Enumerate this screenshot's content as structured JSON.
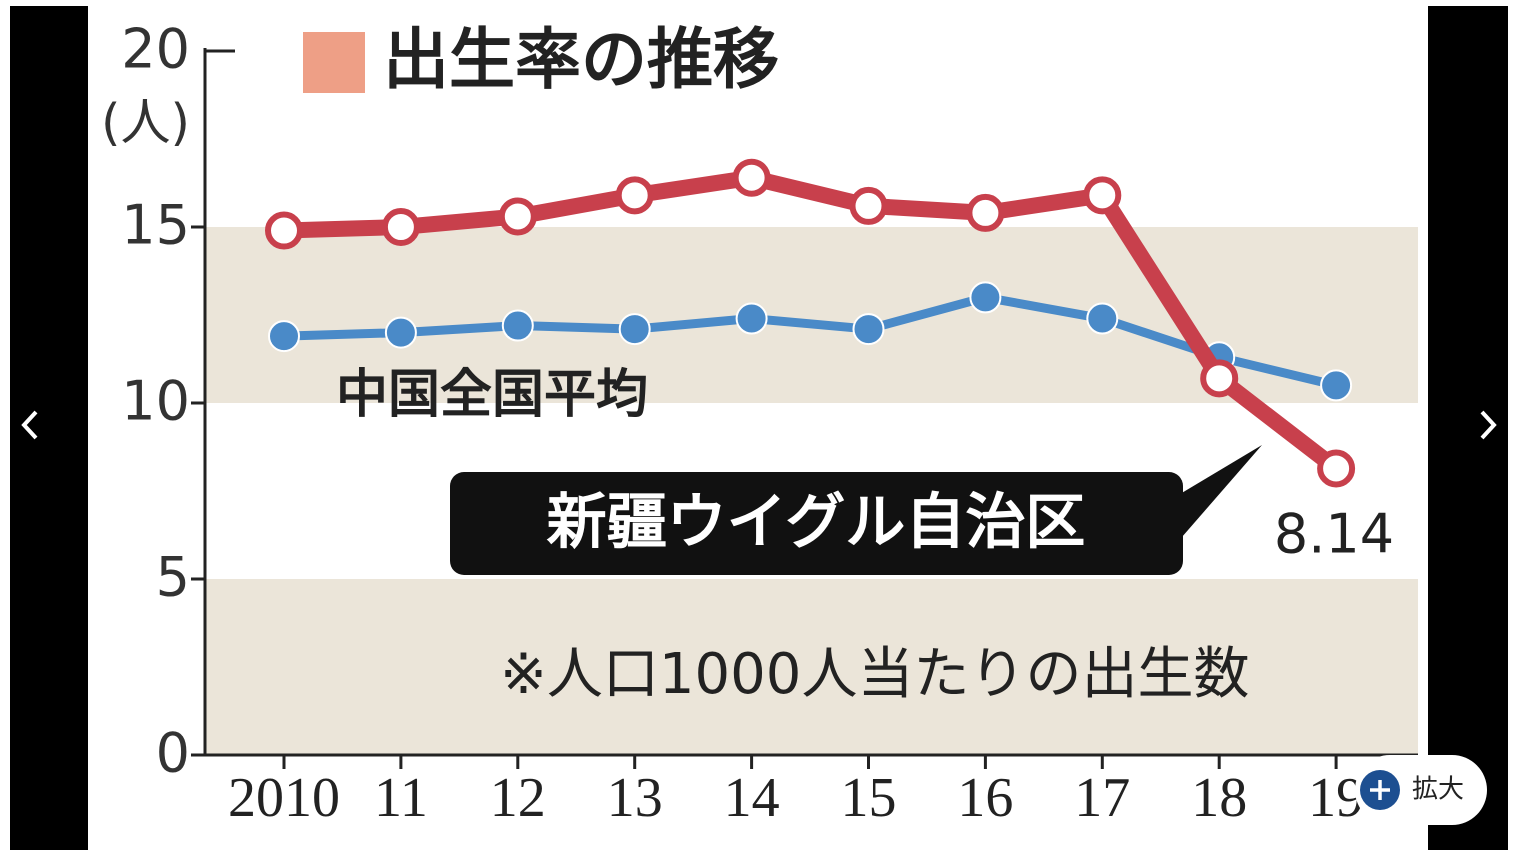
{
  "chart_data": {
    "type": "line",
    "title": "出生率の推移",
    "title_marker_color": "#ee9f86",
    "ylabel": "(人)",
    "note": "※人口1000人当たりの出生数",
    "categories": [
      "2010",
      "11",
      "12",
      "13",
      "14",
      "15",
      "16",
      "17",
      "18",
      "19"
    ],
    "series": [
      {
        "name": "新疆ウイグル自治区",
        "color": "#c8404c",
        "values": [
          14.9,
          15.0,
          15.3,
          15.9,
          16.4,
          15.6,
          15.4,
          15.9,
          10.7,
          8.14
        ]
      },
      {
        "name": "中国全国平均",
        "color": "#4a8ac8",
        "values": [
          11.9,
          12.0,
          12.2,
          12.1,
          12.4,
          12.1,
          13.0,
          12.4,
          11.3,
          10.5
        ]
      }
    ],
    "ylim": [
      0,
      20
    ],
    "yticks": [
      0,
      5,
      10,
      15,
      20
    ],
    "shaded_bands": [
      [
        0,
        5
      ],
      [
        10,
        15
      ]
    ],
    "band_color": "#ebe5d9"
  },
  "viewer": {
    "zoom_label": "拡大"
  }
}
